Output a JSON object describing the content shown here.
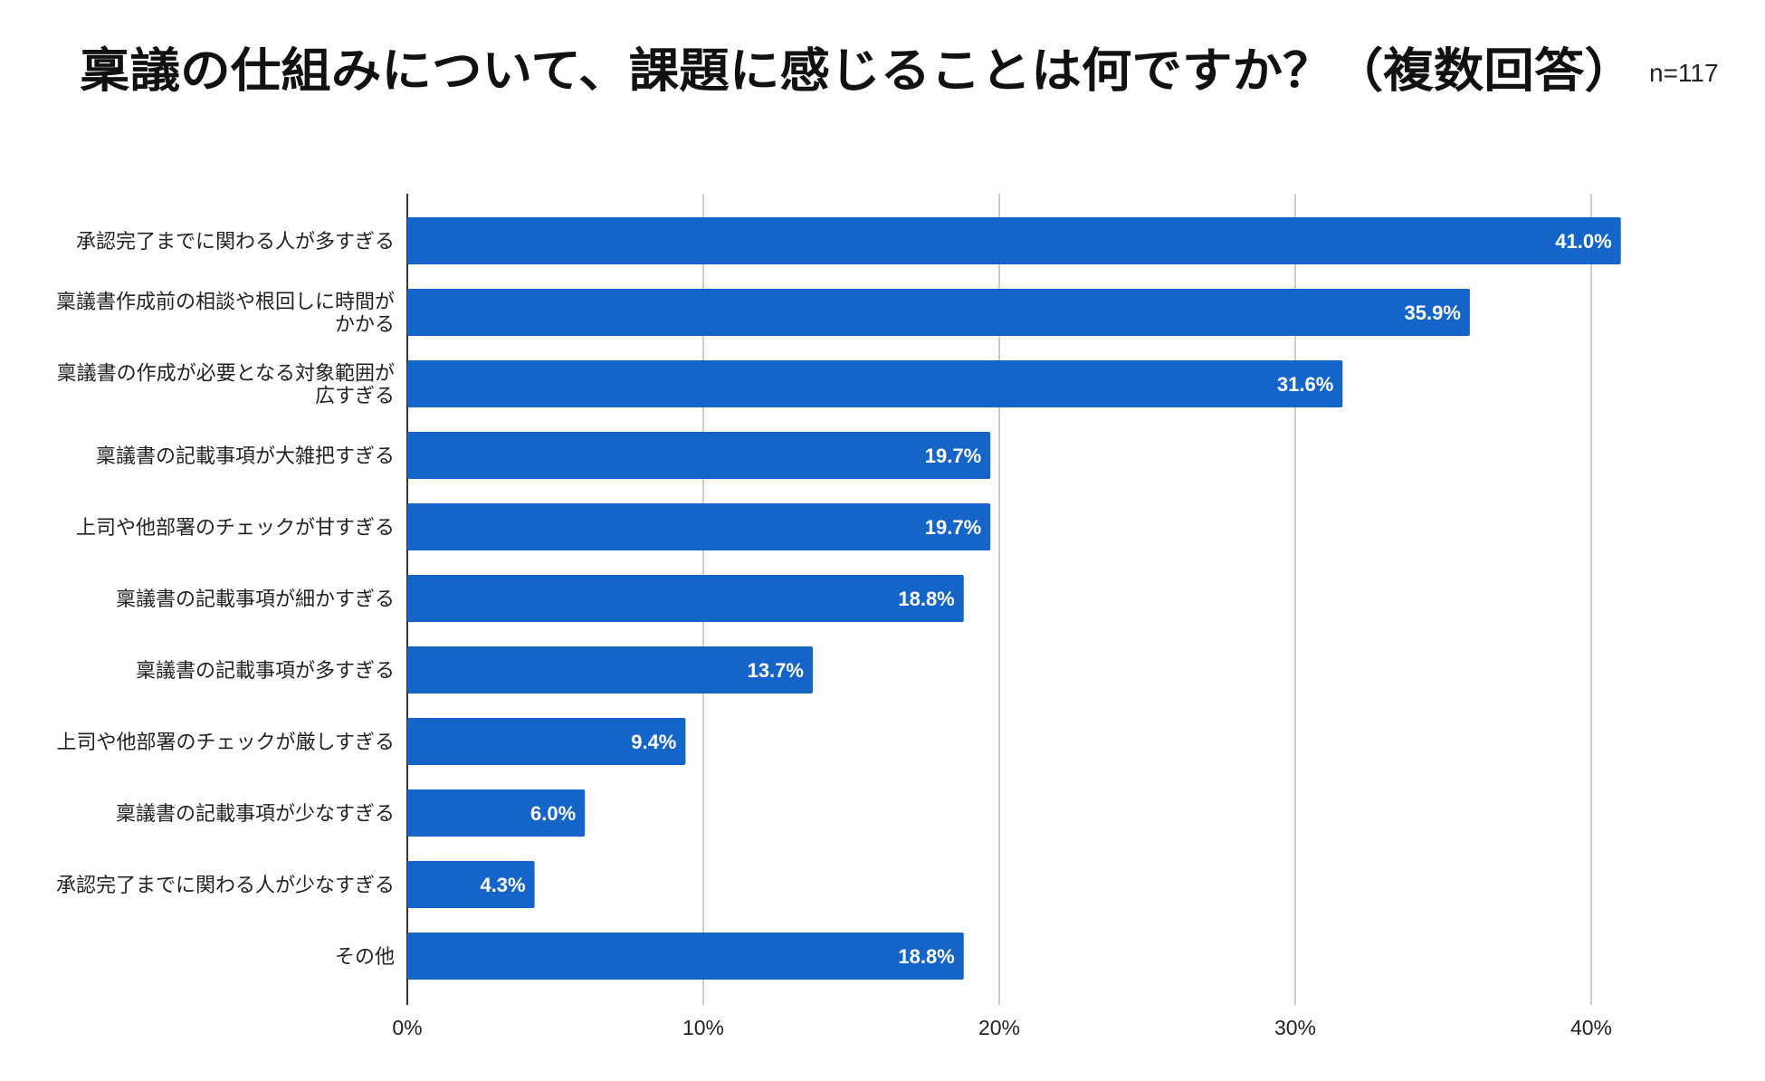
{
  "chart_data": {
    "type": "bar",
    "orientation": "horizontal",
    "title": "稟議の仕組みについて、課題に感じることは何ですか？（複数回答）",
    "sample_size_label": "n=117",
    "categories": [
      [
        "承認完了までに関わる人が多すぎる"
      ],
      [
        "稟議書作成前の相談や根回しに時間が",
        "かかる"
      ],
      [
        "稟議書の作成が必要となる対象範囲が",
        "広すぎる"
      ],
      [
        "稟議書の記載事項が大雑把すぎる"
      ],
      [
        "上司や他部署のチェックが甘すぎる"
      ],
      [
        "稟議書の記載事項が細かすぎる"
      ],
      [
        "稟議書の記載事項が多すぎる"
      ],
      [
        "上司や他部署のチェックが厳しすぎる"
      ],
      [
        "稟議書の記載事項が少なすぎる"
      ],
      [
        "承認完了までに関わる人が少なすぎる"
      ],
      [
        "その他"
      ]
    ],
    "values": [
      41.0,
      35.9,
      31.6,
      19.7,
      19.7,
      18.8,
      13.7,
      9.4,
      6.0,
      4.3,
      18.8
    ],
    "value_labels": [
      "41.0%",
      "35.9%",
      "31.6%",
      "19.7%",
      "19.7%",
      "18.8%",
      "13.7%",
      "9.4%",
      "6.0%",
      "4.3%",
      "18.8%"
    ],
    "xlim": [
      0,
      40
    ],
    "xticks": [
      0,
      10,
      20,
      30,
      40
    ],
    "xtick_labels": [
      "0%",
      "10%",
      "20%",
      "30%",
      "40%"
    ],
    "xlabel": "",
    "ylabel": "",
    "grid": "vertical",
    "bar_color": "#1565c8",
    "grid_color": "#cccccc",
    "axis_color": "#333333"
  }
}
